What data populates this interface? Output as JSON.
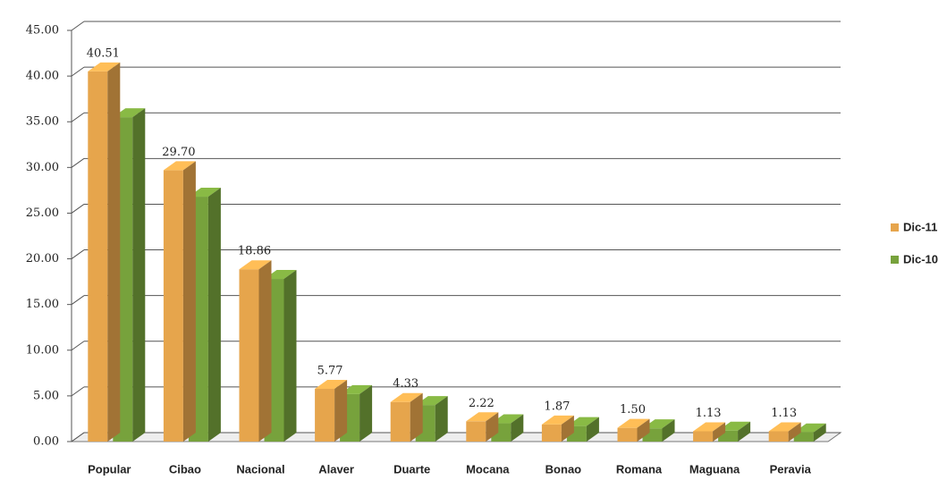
{
  "chart_data": {
    "type": "bar3d",
    "categories": [
      "Popular",
      "Cibao",
      "Nacional",
      "Alaver",
      "Duarte",
      "Mocana",
      "Bonao",
      "Romana",
      "Maguana",
      "Peravia"
    ],
    "series": [
      {
        "name": "Dic-11",
        "color": "#e6a54c",
        "values": [
          40.51,
          29.7,
          18.86,
          5.77,
          4.33,
          2.22,
          1.87,
          1.5,
          1.13,
          1.13
        ],
        "value_labels": [
          "40.51",
          "29.70",
          "18.86",
          "5.77",
          "4.33",
          "2.22",
          "1.87",
          "1.50",
          "1.13",
          "1.13"
        ]
      },
      {
        "name": "Dic-10",
        "color": "#77a23c",
        "values": [
          35.5,
          26.8,
          17.8,
          5.2,
          4.0,
          2.0,
          1.7,
          1.45,
          1.2,
          1.0
        ]
      }
    ],
    "ylim": [
      0,
      45
    ],
    "yticks": [
      {
        "value": 0,
        "label": "0.00"
      },
      {
        "value": 5,
        "label": "5.00"
      },
      {
        "value": 10,
        "label": "10.00"
      },
      {
        "value": 15,
        "label": "15.00"
      },
      {
        "value": 20,
        "label": "20.00"
      },
      {
        "value": 25,
        "label": "25.00"
      },
      {
        "value": 30,
        "label": "30.00"
      },
      {
        "value": 35,
        "label": "35.00"
      },
      {
        "value": 40,
        "label": "40.00"
      },
      {
        "value": 45,
        "label": "45.00"
      }
    ],
    "grid": true,
    "legend": "right"
  }
}
